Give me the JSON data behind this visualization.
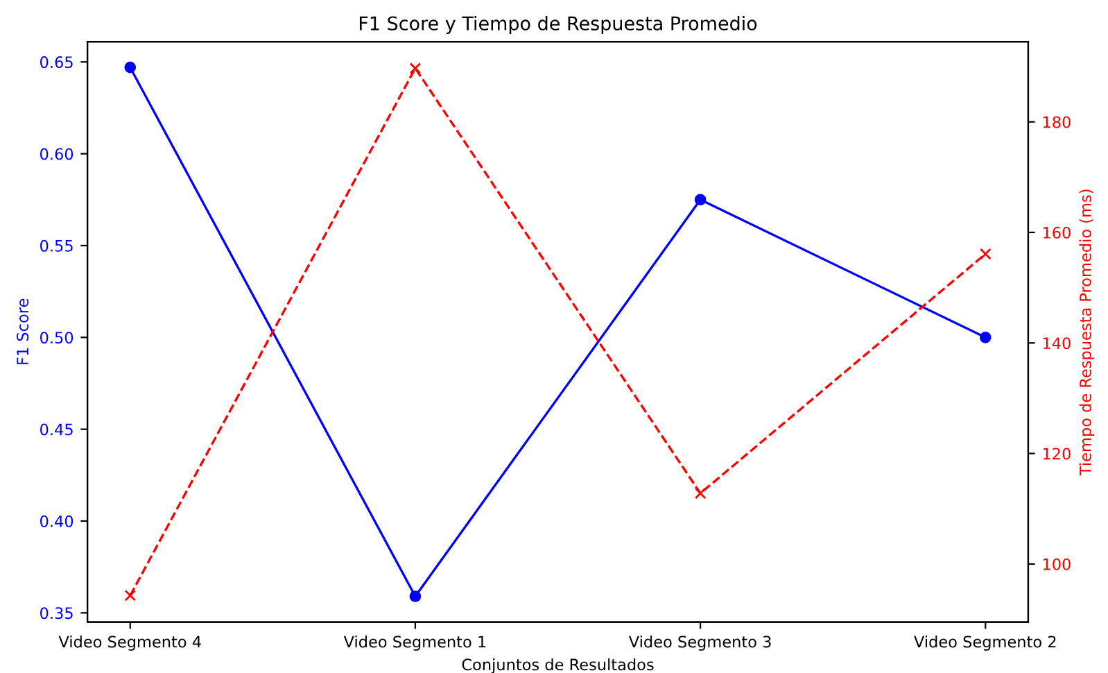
{
  "chart_data": {
    "type": "line",
    "title": "F1 Score y Tiempo de Respuesta Promedio",
    "xlabel": "Conjuntos de Resultados",
    "ylabel": "F1 Score",
    "y2label": "Tiempo de Respuesta Promedio (ms)",
    "categories": [
      "Video Segmento 4",
      "Video Segmento 1",
      "Video Segmento 3",
      "Video Segmento 2"
    ],
    "series": [
      {
        "color": "#0000ff",
        "values": [
          0.647,
          0.359,
          0.575,
          0.5
        ],
        "marker": "circle",
        "line_style": "solid"
      },
      {
        "color": "#ff0000",
        "values": [
          94.3,
          189.7,
          112.8,
          156.1
        ],
        "marker": "cross",
        "line_style": "dashed",
        "axis": "y2"
      }
    ],
    "ylim": [
      0.345,
      0.661
    ],
    "yticks": [
      0.35,
      {
        "value": 0.4,
        "label": "0.40"
      },
      0.45,
      {
        "value": 0.5,
        "label": "0.50"
      },
      0.55,
      {
        "value": 0.6,
        "label": "0.60"
      },
      0.65
    ],
    "y2lim": [
      89.5,
      194.5
    ],
    "y2ticks": [
      100,
      120,
      140,
      160,
      180
    ]
  }
}
